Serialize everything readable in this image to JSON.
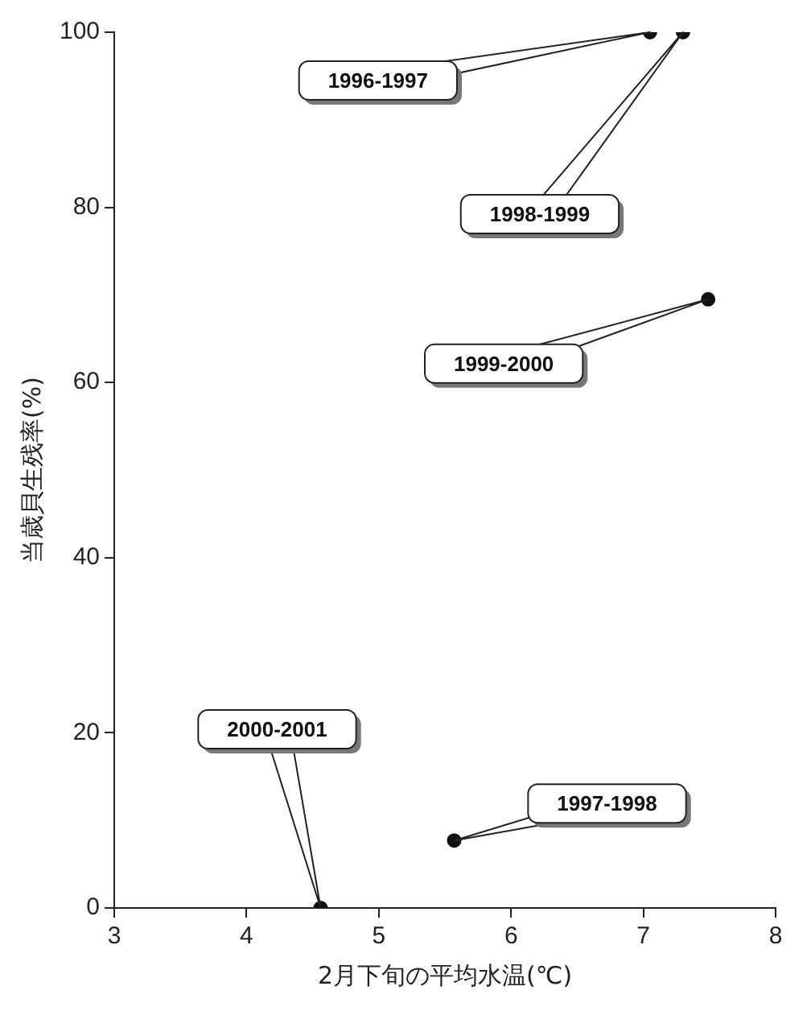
{
  "chart_data": {
    "type": "scatter",
    "xlabel": "2月下旬の平均水温(℃)",
    "ylabel": "当歳貝生残率(%)",
    "x": [
      7.05,
      5.57,
      7.3,
      7.49,
      4.56
    ],
    "series": [
      {
        "color": "#111111",
        "values": [
          100,
          7.7,
          100,
          69.5,
          0
        ]
      }
    ],
    "xlim": [
      3,
      8
    ],
    "xticks": [
      3,
      4,
      5,
      6,
      7,
      8
    ],
    "ylim": [
      0,
      100
    ],
    "yticks": [
      0,
      20,
      40,
      60,
      80,
      100
    ],
    "grid": false,
    "legend": false,
    "marker": "circle",
    "annotations": [
      "1996-1997",
      "1997-1998",
      "1998-1999",
      "1999-2000",
      "2000-2001"
    ]
  }
}
